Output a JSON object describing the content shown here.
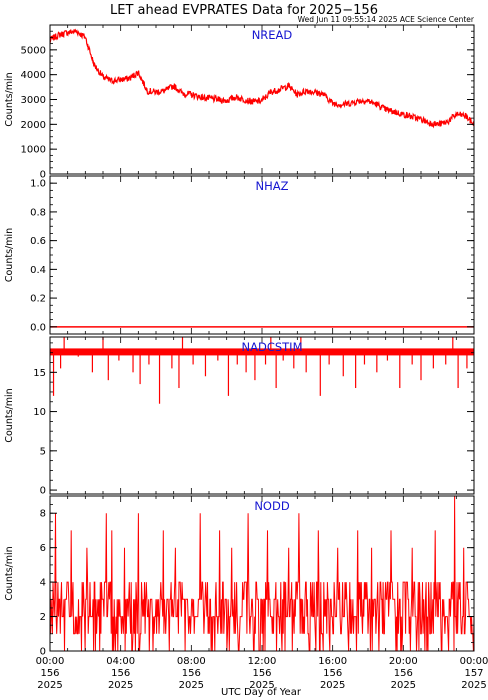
{
  "title": "LET ahead EVPRATES Data for 2025−156",
  "timestamp": "Wed Jun 11 09:55:14 2025 ACE Science Center",
  "xlabel": "UTC Day of Year",
  "x_ticks": [
    {
      "time": "00:00",
      "doy": "156",
      "year": "2025"
    },
    {
      "time": "04:00",
      "doy": "156",
      "year": "2025"
    },
    {
      "time": "08:00",
      "doy": "156",
      "year": "2025"
    },
    {
      "time": "12:00",
      "doy": "156",
      "year": "2025"
    },
    {
      "time": "16:00",
      "doy": "156",
      "year": "2025"
    },
    {
      "time": "20:00",
      "doy": "156",
      "year": "2025"
    },
    {
      "time": "00:00",
      "doy": "157",
      "year": "2025"
    }
  ],
  "colors": {
    "series": "#ff0000",
    "panel_label": "#1515d0",
    "axes": "#000000"
  },
  "chart_data": [
    {
      "type": "line",
      "label": "NREAD",
      "ylabel": "Counts/min",
      "xlim": [
        0,
        24
      ],
      "ylim": [
        0,
        6000
      ],
      "yticks": [
        "0",
        "1000",
        "2000",
        "3000",
        "4000",
        "5000"
      ],
      "ytick_values": [
        0,
        1000,
        2000,
        3000,
        4000,
        5000
      ],
      "x": [
        0,
        0.5,
        1.0,
        1.5,
        2.0,
        2.5,
        3.0,
        3.5,
        4.0,
        4.5,
        5.0,
        5.5,
        6.0,
        6.5,
        7.0,
        7.5,
        8.0,
        8.5,
        9.0,
        9.5,
        10.0,
        10.5,
        11.0,
        11.5,
        12.0,
        12.5,
        13.0,
        13.5,
        14.0,
        14.5,
        15.0,
        15.5,
        16.0,
        16.5,
        17.0,
        17.5,
        18.0,
        18.5,
        19.0,
        19.5,
        20.0,
        20.5,
        21.0,
        21.5,
        22.0,
        22.5,
        23.0,
        23.5,
        24.0
      ],
      "values": [
        5400,
        5600,
        5700,
        5750,
        5500,
        4400,
        3900,
        3750,
        3800,
        3850,
        4100,
        3350,
        3300,
        3350,
        3550,
        3250,
        3200,
        3100,
        3050,
        3000,
        2950,
        3100,
        3000,
        2900,
        2950,
        3300,
        3400,
        3550,
        3200,
        3350,
        3300,
        3200,
        2850,
        2800,
        2850,
        2950,
        2950,
        2800,
        2600,
        2500,
        2400,
        2300,
        2200,
        2050,
        2000,
        2100,
        2400,
        2350,
        2000
      ]
    },
    {
      "type": "line",
      "label": "NHAZ",
      "ylabel": "Counts/min",
      "xlim": [
        0,
        24
      ],
      "ylim": [
        -0.05,
        1.05
      ],
      "yticks": [
        "0.0",
        "0.2",
        "0.4",
        "0.6",
        "0.8",
        "1.0"
      ],
      "ytick_values": [
        0,
        0.2,
        0.4,
        0.6,
        0.8,
        1.0
      ],
      "x": [
        0,
        24
      ],
      "values": [
        0,
        0
      ]
    },
    {
      "type": "line",
      "label": "NADCSTIM",
      "ylabel": "Counts/min",
      "xlim": [
        0,
        24
      ],
      "ylim": [
        -0.5,
        19.5
      ],
      "yticks": [
        "0",
        "5",
        "10",
        "15"
      ],
      "ytick_values": [
        0,
        5,
        10,
        15
      ],
      "baseline": 17.6,
      "dips": [
        [
          0.2,
          12
        ],
        [
          0.6,
          15.5
        ],
        [
          1.6,
          17
        ],
        [
          2.4,
          15
        ],
        [
          3.3,
          14
        ],
        [
          3.9,
          16.5
        ],
        [
          4.7,
          15
        ],
        [
          5.1,
          13.5
        ],
        [
          5.6,
          16
        ],
        [
          6.2,
          11
        ],
        [
          6.9,
          15.5
        ],
        [
          7.3,
          13
        ],
        [
          8.1,
          16
        ],
        [
          8.8,
          14.5
        ],
        [
          9.5,
          16.5
        ],
        [
          10.1,
          12
        ],
        [
          10.6,
          16
        ],
        [
          11.1,
          15
        ],
        [
          11.6,
          14
        ],
        [
          12.2,
          16
        ],
        [
          12.8,
          13
        ],
        [
          13.2,
          16.5
        ],
        [
          13.8,
          15.5
        ],
        [
          14.5,
          15
        ],
        [
          15.3,
          12
        ],
        [
          15.8,
          16
        ],
        [
          16.6,
          14.5
        ],
        [
          17.3,
          13
        ],
        [
          17.8,
          16
        ],
        [
          18.5,
          15
        ],
        [
          19.1,
          16.5
        ],
        [
          19.8,
          13
        ],
        [
          20.5,
          16
        ],
        [
          21.0,
          14
        ],
        [
          21.7,
          15.5
        ],
        [
          22.4,
          16
        ],
        [
          23.1,
          13
        ],
        [
          23.6,
          15.5
        ]
      ],
      "spikes": [
        [
          0.8,
          19.5
        ],
        [
          3.0,
          19.5
        ],
        [
          7.5,
          19.5
        ],
        [
          12.5,
          19.5
        ],
        [
          14.2,
          19.5
        ],
        [
          22.8,
          19.5
        ]
      ]
    },
    {
      "type": "line",
      "label": "NODD",
      "ylabel": "Counts/min",
      "xlim": [
        0,
        24
      ],
      "ylim": [
        0,
        9
      ],
      "yticks": [
        "0",
        "2",
        "4",
        "6",
        "8"
      ],
      "ytick_values": [
        0,
        2,
        4,
        6,
        8
      ],
      "typical_range": [
        1,
        4
      ],
      "spikes": [
        [
          0.3,
          8
        ],
        [
          1.2,
          7
        ],
        [
          2.1,
          6
        ],
        [
          3.2,
          8
        ],
        [
          3.5,
          7
        ],
        [
          4.2,
          6
        ],
        [
          5.0,
          8
        ],
        [
          6.4,
          7
        ],
        [
          7.1,
          6
        ],
        [
          8.5,
          8
        ],
        [
          9.6,
          7
        ],
        [
          10.3,
          6
        ],
        [
          11.2,
          8
        ],
        [
          12.3,
          7
        ],
        [
          13.5,
          6
        ],
        [
          14.1,
          8
        ],
        [
          15.2,
          7
        ],
        [
          16.3,
          6
        ],
        [
          17.4,
          7
        ],
        [
          18.2,
          6
        ],
        [
          19.3,
          7
        ],
        [
          20.5,
          6
        ],
        [
          21.8,
          7
        ],
        [
          22.9,
          9
        ],
        [
          23.4,
          6
        ]
      ]
    }
  ]
}
